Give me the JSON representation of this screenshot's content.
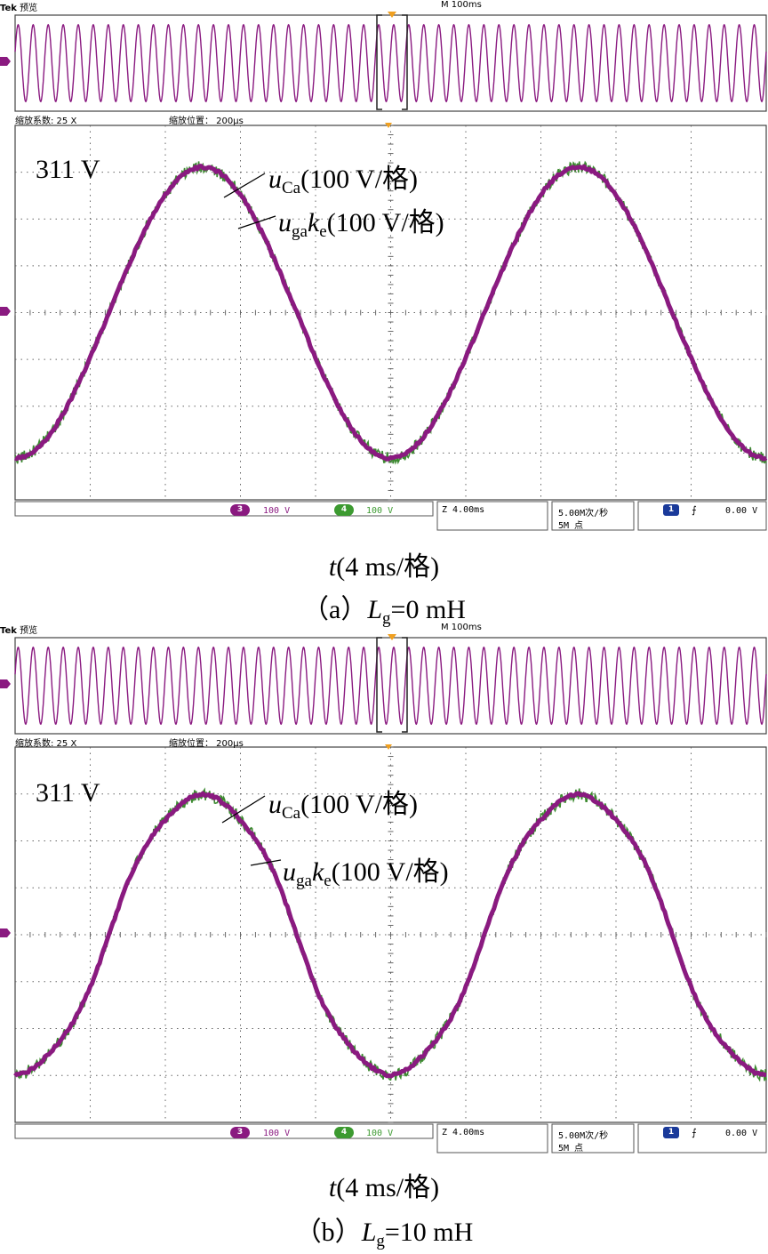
{
  "chart_data": [
    {
      "type": "line",
      "panel": "a",
      "header": {
        "brand": "Tek",
        "mode": "预览",
        "timebase": "M 100ms"
      },
      "zoom": {
        "factor_label": "缩放系数: 25 X",
        "position_label": "缩放位置： 200μs"
      },
      "annotations": {
        "level": "311 V",
        "series1": {
          "var": "u",
          "sub": "Ca",
          "scale": "(100 V/格)"
        },
        "series2": {
          "var": "u",
          "sub": "ga",
          "var2": "k",
          "sub2": "e",
          "scale": "(100 V/格)"
        }
      },
      "status": {
        "ch3_num": "3",
        "ch3_scale": "100 V",
        "ch4_num": "4",
        "ch4_scale": "100 V",
        "zoom_time": "Z 4.00ms",
        "rate1": "5.00M次/秒",
        "rate2": "5M 点",
        "trig_num": "1",
        "trig_level": "0.00 V"
      },
      "xlabel": {
        "var": "t",
        "rest": "(4 ms/格)"
      },
      "caption": {
        "prefix": "（a）",
        "var": "L",
        "sub": "g",
        "rest": "=0 mH"
      },
      "x_unit": "ms",
      "x_div": 4,
      "y_unit": "V",
      "y_div": 100,
      "xlim": [
        0,
        40
      ],
      "ylim": [
        -400,
        400
      ],
      "signal": {
        "amplitude": 311,
        "frequency_hz": 50,
        "start_value": -311,
        "distortion": 0
      },
      "series": [
        {
          "name": "uCa",
          "color": "#8a1a80"
        },
        {
          "name": "ugake",
          "color": "#3c8a30"
        }
      ],
      "colors": {
        "ch3": "#8a1a80",
        "ch4": "#3c9a30"
      }
    },
    {
      "type": "line",
      "panel": "b",
      "header": {
        "brand": "Tek",
        "mode": "预览",
        "timebase": "M 100ms"
      },
      "zoom": {
        "factor_label": "缩放系数: 25 X",
        "position_label": "缩放位置： 200μs"
      },
      "annotations": {
        "level": "311 V",
        "series1": {
          "var": "u",
          "sub": "Ca",
          "scale": "(100 V/格)"
        },
        "series2": {
          "var": "u",
          "sub": "ga",
          "var2": "k",
          "sub2": "e",
          "scale": "(100 V/格)"
        }
      },
      "status": {
        "ch3_num": "3",
        "ch3_scale": "100 V",
        "ch4_num": "4",
        "ch4_scale": "100 V",
        "zoom_time": "Z 4.00ms",
        "rate1": "5.00M次/秒",
        "rate2": "5M 点",
        "trig_num": "1",
        "trig_level": "0.00 V"
      },
      "xlabel": {
        "var": "t",
        "rest": "(4 ms/格)"
      },
      "caption": {
        "prefix": "（b）",
        "var": "L",
        "sub": "g",
        "rest": "=10 mH"
      },
      "x_unit": "ms",
      "x_div": 4,
      "y_unit": "V",
      "y_div": 100,
      "xlim": [
        0,
        40
      ],
      "ylim": [
        -400,
        400
      ],
      "signal": {
        "amplitude": 311,
        "frequency_hz": 50,
        "start_value": -311,
        "distortion": 0.07
      },
      "series": [
        {
          "name": "uCa",
          "color": "#8a1a80"
        },
        {
          "name": "ugake",
          "color": "#3c8a30"
        }
      ],
      "colors": {
        "ch3": "#8a1a80",
        "ch4": "#3c9a30"
      }
    }
  ]
}
